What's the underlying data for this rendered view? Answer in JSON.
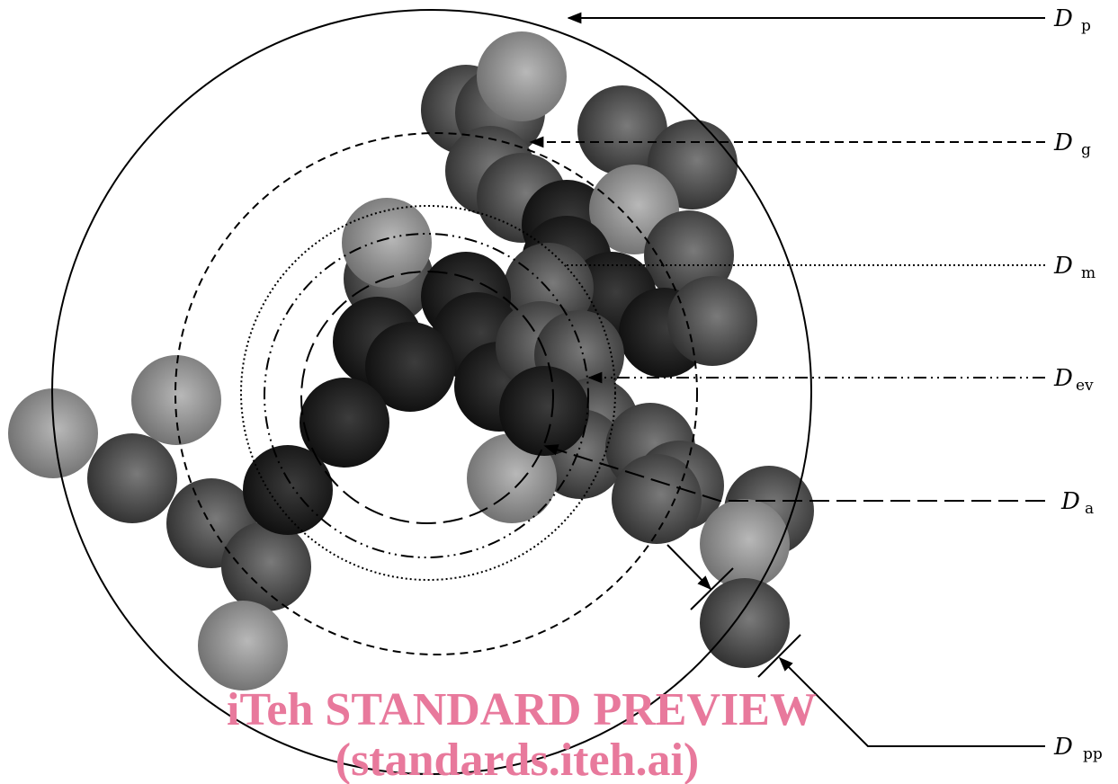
{
  "labels": [
    {
      "symbol": "D",
      "subscript": "p"
    },
    {
      "symbol": "D",
      "subscript": "g"
    },
    {
      "symbol": "D",
      "subscript": "m"
    },
    {
      "symbol": "D",
      "subscript": "ev"
    },
    {
      "symbol": "D",
      "subscript": "a"
    },
    {
      "symbol": "D",
      "subscript": "pp"
    }
  ],
  "watermark": {
    "line1": "iTeh STANDARD PREVIEW",
    "line2": "(standards.iteh.ai)"
  }
}
